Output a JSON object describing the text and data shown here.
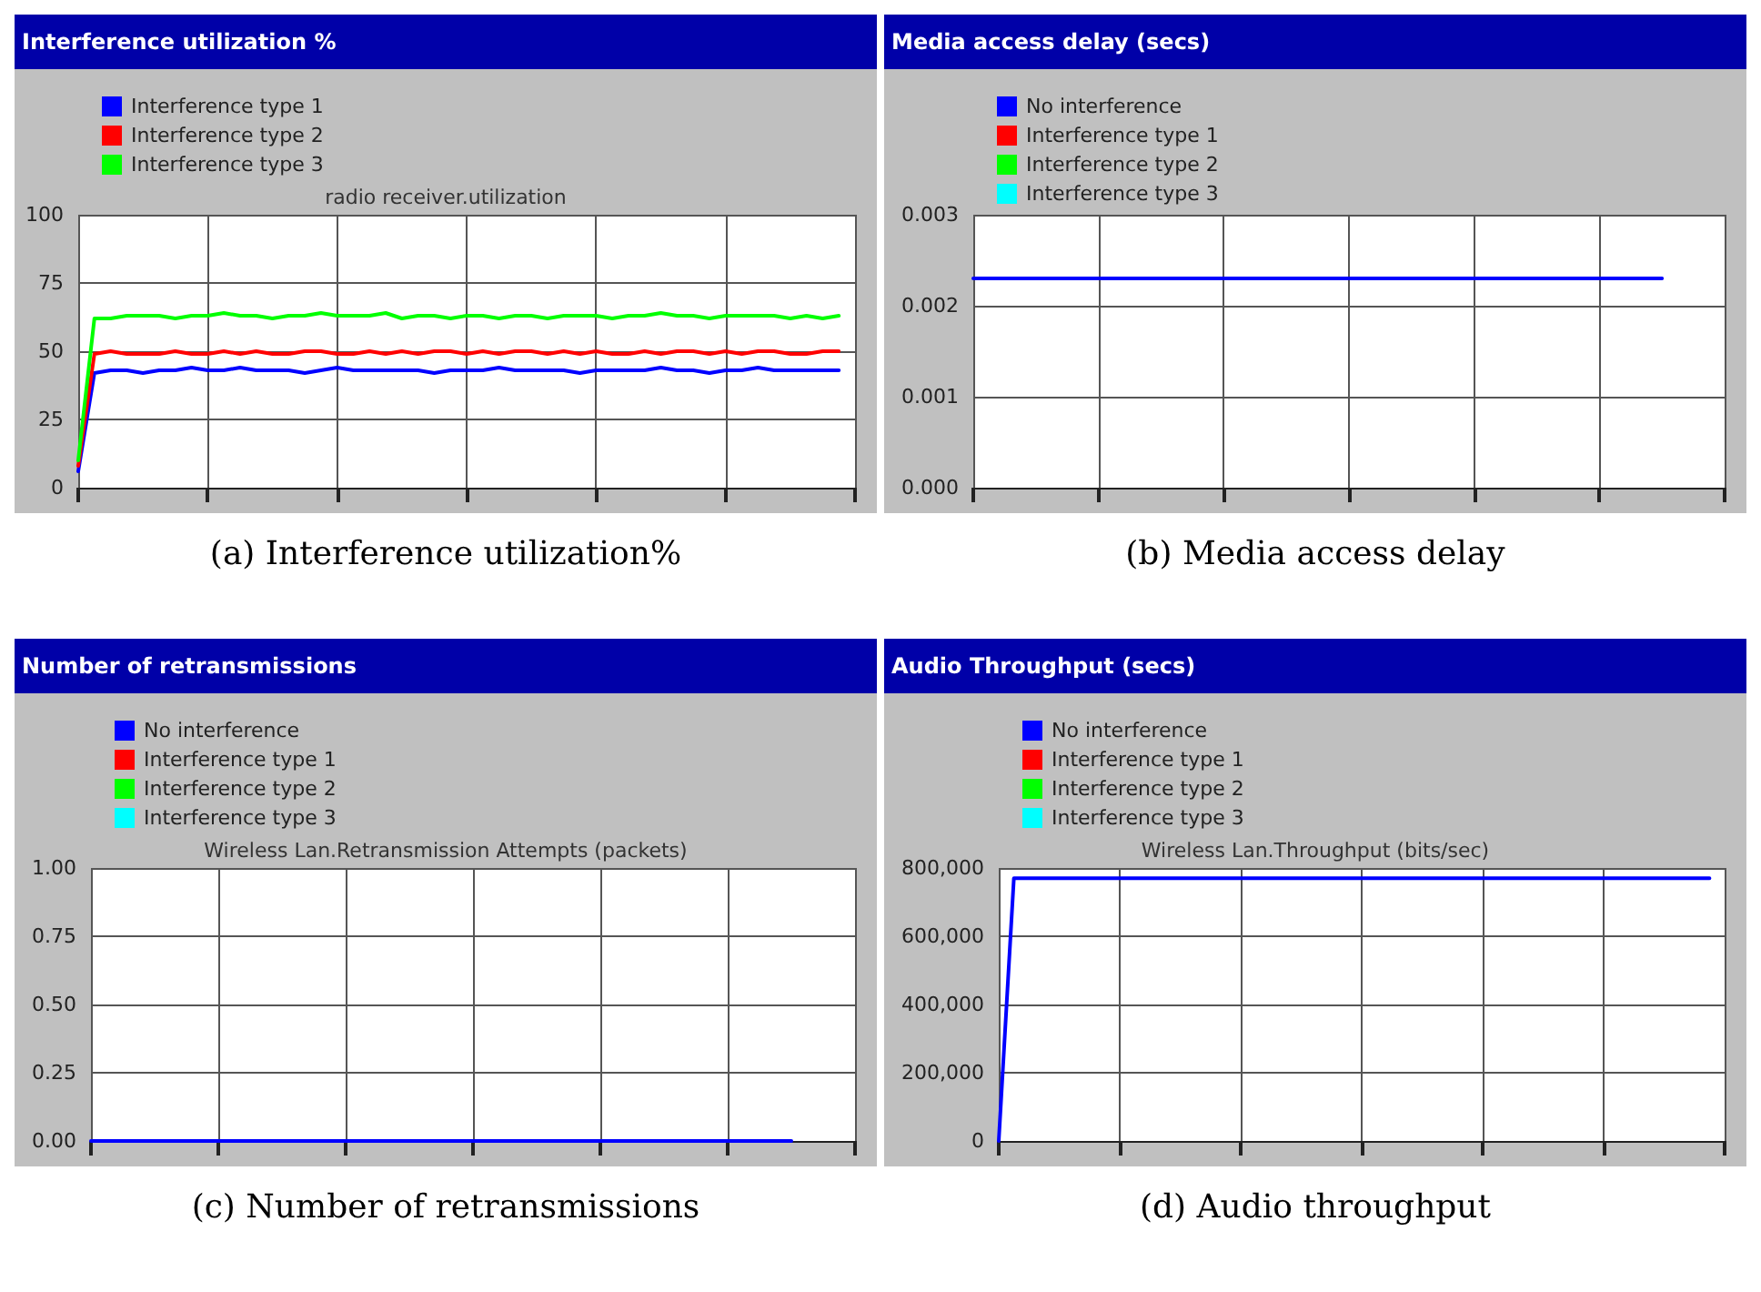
{
  "chart_data": [
    {
      "type": "line",
      "title": "Interference utilization %",
      "subtitle": "radio receiver.utilization",
      "annotations": [
        "(a) Interference utilization%"
      ],
      "categories": [
        null,
        null,
        null,
        null,
        null,
        null,
        null,
        null,
        null,
        null,
        null,
        null,
        null,
        null,
        null,
        null,
        null,
        null,
        null,
        null,
        null,
        null,
        null,
        null,
        null,
        null,
        null,
        null,
        null,
        null,
        null,
        null,
        null,
        null,
        null,
        null,
        null,
        null,
        null,
        null,
        null,
        null,
        null,
        null,
        null,
        null,
        null,
        null,
        null
      ],
      "series": [
        {
          "name": "Interference type 1",
          "color": "#0000ff",
          "values": [
            6,
            42,
            43,
            43,
            42,
            43,
            43,
            44,
            43,
            43,
            44,
            43,
            43,
            43,
            42,
            43,
            44,
            43,
            43,
            43,
            43,
            43,
            42,
            43,
            43,
            43,
            44,
            43,
            43,
            43,
            43,
            42,
            43,
            43,
            43,
            43,
            44,
            43,
            43,
            42,
            43,
            43,
            44,
            43,
            43,
            43,
            43,
            43,
            null
          ]
        },
        {
          "name": "Interference type 2",
          "color": "#ff0000",
          "values": [
            8,
            49,
            50,
            49,
            49,
            49,
            50,
            49,
            49,
            50,
            49,
            50,
            49,
            49,
            50,
            50,
            49,
            49,
            50,
            49,
            50,
            49,
            50,
            50,
            49,
            50,
            49,
            50,
            50,
            49,
            50,
            49,
            50,
            49,
            49,
            50,
            49,
            50,
            50,
            49,
            50,
            49,
            50,
            50,
            49,
            49,
            50,
            50,
            null
          ]
        },
        {
          "name": "Interference type 3",
          "color": "#00ff00",
          "values": [
            10,
            62,
            62,
            63,
            63,
            63,
            62,
            63,
            63,
            64,
            63,
            63,
            62,
            63,
            63,
            64,
            63,
            63,
            63,
            64,
            62,
            63,
            63,
            62,
            63,
            63,
            62,
            63,
            63,
            62,
            63,
            63,
            63,
            62,
            63,
            63,
            64,
            63,
            63,
            62,
            63,
            63,
            63,
            63,
            62,
            63,
            62,
            63,
            null
          ]
        }
      ],
      "ylim": [
        0,
        100
      ],
      "yticks": [
        0,
        25,
        50,
        75,
        100
      ],
      "grid": true,
      "legend": "top left",
      "tick_labels": "y",
      "line_style": "solid"
    },
    {
      "type": "line",
      "title": "Media access delay (secs)",
      "annotations": [
        "(b) Media access delay"
      ],
      "categories": [
        null,
        null,
        null,
        null,
        null,
        null,
        null,
        null,
        null,
        null,
        null,
        null,
        null
      ],
      "series": [
        {
          "name": "No interference",
          "color": "#0000ff",
          "values": [
            0.0023,
            0.0023,
            0.0023,
            0.0023,
            0.0023,
            0.0023,
            0.0023,
            0.0023,
            0.0023,
            0.0023,
            0.0023,
            0.0023,
            null
          ]
        },
        {
          "name": "Interference type 1",
          "color": "#ff0000",
          "values": [
            null,
            null,
            null,
            null,
            null,
            null,
            null,
            null,
            null,
            null,
            null,
            null,
            null
          ]
        },
        {
          "name": "Interference type 2",
          "color": "#00ff00",
          "values": [
            null,
            null,
            null,
            null,
            null,
            null,
            null,
            null,
            null,
            null,
            null,
            null,
            null
          ]
        },
        {
          "name": "Interference type 3",
          "color": "#00ffff",
          "values": [
            null,
            null,
            null,
            null,
            null,
            null,
            null,
            null,
            null,
            null,
            null,
            null,
            null
          ]
        }
      ],
      "ylim": [
        0,
        0.003
      ],
      "yticks": [
        {
          "value": 0,
          "label": "0.000"
        },
        {
          "value": 0.001,
          "label": "0.001"
        },
        {
          "value": 0.002,
          "label": "0.002"
        },
        {
          "value": 0.003,
          "label": "0.003"
        }
      ],
      "grid": true,
      "legend": "top left",
      "tick_labels": "y",
      "line_style": "solid"
    },
    {
      "type": "line",
      "title": "Number of retransmissions",
      "subtitle": "Wireless Lan.Retransmission Attempts (packets)",
      "annotations": [
        "(c) Number of retransmissions"
      ],
      "categories": [
        null,
        null,
        null,
        null,
        null,
        null,
        null,
        null,
        null,
        null,
        null,
        null,
        null
      ],
      "series": [
        {
          "name": "No interference",
          "color": "#0000ff",
          "values": [
            0,
            0,
            0,
            0,
            0,
            0,
            0,
            0,
            0,
            0,
            0,
            0,
            null
          ]
        },
        {
          "name": "Interference type 1",
          "color": "#ff0000",
          "values": [
            null,
            null,
            null,
            null,
            null,
            null,
            null,
            null,
            null,
            null,
            null,
            null,
            null
          ]
        },
        {
          "name": "Interference type 2",
          "color": "#00ff00",
          "values": [
            null,
            null,
            null,
            null,
            null,
            null,
            null,
            null,
            null,
            null,
            null,
            null,
            null
          ]
        },
        {
          "name": "Interference type 3",
          "color": "#00ffff",
          "values": [
            null,
            null,
            null,
            null,
            null,
            null,
            null,
            null,
            null,
            null,
            null,
            null,
            null
          ]
        }
      ],
      "ylim": [
        0,
        1
      ],
      "yticks": [
        {
          "value": 0,
          "label": "0.00"
        },
        {
          "value": 0.25,
          "label": "0.25"
        },
        {
          "value": 0.5,
          "label": "0.50"
        },
        {
          "value": 0.75,
          "label": "0.75"
        },
        {
          "value": 1,
          "label": "1.00"
        }
      ],
      "grid": true,
      "legend": "top left",
      "tick_labels": "y",
      "line_style": "solid"
    },
    {
      "type": "line",
      "title": "Audio Throughput (secs)",
      "subtitle": "Wireless Lan.Throughput (bits/sec)",
      "annotations": [
        "(d) Audio throughput"
      ],
      "categories": [
        null,
        null,
        null,
        null,
        null,
        null,
        null,
        null,
        null,
        null,
        null,
        null,
        null,
        null,
        null,
        null,
        null,
        null,
        null,
        null,
        null,
        null,
        null,
        null,
        null,
        null,
        null,
        null,
        null,
        null,
        null,
        null,
        null,
        null,
        null,
        null,
        null,
        null,
        null,
        null,
        null,
        null,
        null,
        null,
        null,
        null,
        null,
        null,
        null
      ],
      "series": [
        {
          "name": "No interference",
          "color": "#0000ff",
          "values": [
            0,
            770000,
            770000,
            770000,
            770000,
            770000,
            770000,
            770000,
            770000,
            770000,
            770000,
            770000,
            770000,
            770000,
            770000,
            770000,
            770000,
            770000,
            770000,
            770000,
            770000,
            770000,
            770000,
            770000,
            770000,
            770000,
            770000,
            770000,
            770000,
            770000,
            770000,
            770000,
            770000,
            770000,
            770000,
            770000,
            770000,
            770000,
            770000,
            770000,
            770000,
            770000,
            770000,
            770000,
            770000,
            770000,
            770000,
            770000,
            null
          ]
        },
        {
          "name": "Interference type 1",
          "color": "#ff0000",
          "values": [
            null,
            null,
            null,
            null,
            null,
            null,
            null,
            null,
            null,
            null,
            null,
            null,
            null,
            null,
            null,
            null,
            null,
            null,
            null,
            null,
            null,
            null,
            null,
            null,
            null,
            null,
            null,
            null,
            null,
            null,
            null,
            null,
            null,
            null,
            null,
            null,
            null,
            null,
            null,
            null,
            null,
            null,
            null,
            null,
            null,
            null,
            null,
            null,
            null
          ]
        },
        {
          "name": "Interference type 2",
          "color": "#00ff00",
          "values": [
            null,
            null,
            null,
            null,
            null,
            null,
            null,
            null,
            null,
            null,
            null,
            null,
            null,
            null,
            null,
            null,
            null,
            null,
            null,
            null,
            null,
            null,
            null,
            null,
            null,
            null,
            null,
            null,
            null,
            null,
            null,
            null,
            null,
            null,
            null,
            null,
            null,
            null,
            null,
            null,
            null,
            null,
            null,
            null,
            null,
            null,
            null,
            null,
            null
          ]
        },
        {
          "name": "Interference type 3",
          "color": "#00ffff",
          "values": [
            null,
            null,
            null,
            null,
            null,
            null,
            null,
            null,
            null,
            null,
            null,
            null,
            null,
            null,
            null,
            null,
            null,
            null,
            null,
            null,
            null,
            null,
            null,
            null,
            null,
            null,
            null,
            null,
            null,
            null,
            null,
            null,
            null,
            null,
            null,
            null,
            null,
            null,
            null,
            null,
            null,
            null,
            null,
            null,
            null,
            null,
            null,
            null,
            null
          ]
        }
      ],
      "ylim": [
        0,
        800000
      ],
      "yticks": [
        {
          "value": 0,
          "label": "0"
        },
        {
          "value": 200000,
          "label": "200,000"
        },
        {
          "value": 400000,
          "label": "400,000"
        },
        {
          "value": 600000,
          "label": "600,000"
        },
        {
          "value": 800000,
          "label": "800,000"
        }
      ],
      "grid": true,
      "legend": "top left",
      "tick_labels": "y",
      "line_style": "solid"
    }
  ]
}
